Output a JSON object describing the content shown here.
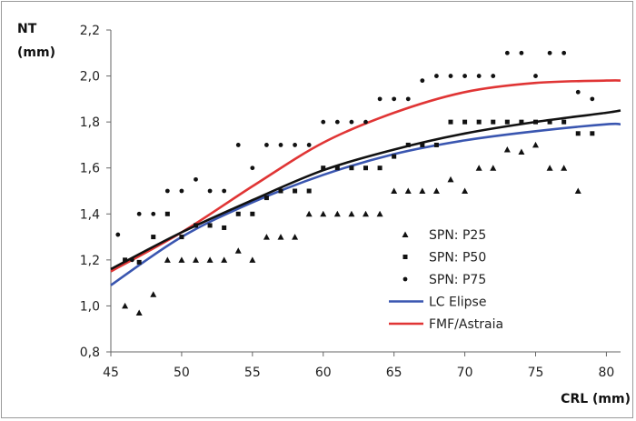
{
  "chart_data": {
    "type": "scatter",
    "title": "",
    "ylabel_line1": "NT",
    "ylabel_line2": "(mm)",
    "xlabel": "CRL (mm)",
    "xlim": [
      45,
      81
    ],
    "ylim": [
      0.8,
      2.2
    ],
    "x_ticks": [
      45,
      50,
      55,
      60,
      65,
      70,
      75,
      80
    ],
    "y_ticks": [
      0.8,
      1.0,
      1.2,
      1.4,
      1.6,
      1.8,
      2.0,
      2.2
    ],
    "x_tick_labels": [
      "45",
      "50",
      "55",
      "60",
      "65",
      "70",
      "75",
      "80"
    ],
    "y_tick_labels": [
      "0,8",
      "1,0",
      "1,2",
      "1,4",
      "1,6",
      "1,8",
      "2,0",
      "2,2"
    ],
    "grid": false,
    "legend_position": "bottom-right",
    "colors": {
      "points": "#111111",
      "lc_elipse": "#3a56b0",
      "fmf_astraia": "#e03535",
      "black_curve": "#111111",
      "axis": "#666666"
    },
    "series": [
      {
        "name": "SPN: P25",
        "marker": "triangle",
        "points": [
          [
            46,
            1.0
          ],
          [
            47,
            0.97
          ],
          [
            48,
            1.05
          ],
          [
            49,
            1.2
          ],
          [
            50,
            1.2
          ],
          [
            51,
            1.2
          ],
          [
            52,
            1.2
          ],
          [
            53,
            1.2
          ],
          [
            54,
            1.24
          ],
          [
            55,
            1.2
          ],
          [
            56,
            1.3
          ],
          [
            57,
            1.3
          ],
          [
            58,
            1.3
          ],
          [
            59,
            1.4
          ],
          [
            60,
            1.4
          ],
          [
            61,
            1.4
          ],
          [
            62,
            1.4
          ],
          [
            63,
            1.4
          ],
          [
            64,
            1.4
          ],
          [
            65,
            1.5
          ],
          [
            66,
            1.5
          ],
          [
            67,
            1.5
          ],
          [
            68,
            1.5
          ],
          [
            69,
            1.55
          ],
          [
            70,
            1.5
          ],
          [
            71,
            1.6
          ],
          [
            72,
            1.6
          ],
          [
            73,
            1.68
          ],
          [
            74,
            1.67
          ],
          [
            75,
            1.7
          ],
          [
            76,
            1.6
          ],
          [
            77,
            1.6
          ],
          [
            78,
            1.5
          ]
        ]
      },
      {
        "name": "SPN: P50",
        "marker": "square",
        "points": [
          [
            46,
            1.2
          ],
          [
            47,
            1.19
          ],
          [
            48,
            1.3
          ],
          [
            49,
            1.4
          ],
          [
            50,
            1.3
          ],
          [
            51,
            1.35
          ],
          [
            52,
            1.35
          ],
          [
            53,
            1.34
          ],
          [
            54,
            1.4
          ],
          [
            55,
            1.4
          ],
          [
            56,
            1.47
          ],
          [
            57,
            1.5
          ],
          [
            58,
            1.5
          ],
          [
            59,
            1.5
          ],
          [
            60,
            1.6
          ],
          [
            61,
            1.6
          ],
          [
            62,
            1.6
          ],
          [
            63,
            1.6
          ],
          [
            64,
            1.6
          ],
          [
            65,
            1.65
          ],
          [
            66,
            1.7
          ],
          [
            67,
            1.7
          ],
          [
            68,
            1.7
          ],
          [
            69,
            1.8
          ],
          [
            70,
            1.8
          ],
          [
            71,
            1.8
          ],
          [
            72,
            1.8
          ],
          [
            73,
            1.8
          ],
          [
            74,
            1.8
          ],
          [
            75,
            1.8
          ],
          [
            76,
            1.8
          ],
          [
            77,
            1.8
          ],
          [
            78,
            1.75
          ],
          [
            79,
            1.75
          ]
        ]
      },
      {
        "name": "SPN: P75",
        "marker": "dot",
        "points": [
          [
            45.5,
            1.31
          ],
          [
            46.5,
            1.2
          ],
          [
            47,
            1.4
          ],
          [
            48,
            1.4
          ],
          [
            49,
            1.5
          ],
          [
            50,
            1.5
          ],
          [
            51,
            1.55
          ],
          [
            52,
            1.5
          ],
          [
            53,
            1.5
          ],
          [
            54,
            1.7
          ],
          [
            55,
            1.6
          ],
          [
            56,
            1.7
          ],
          [
            57,
            1.7
          ],
          [
            58,
            1.7
          ],
          [
            59,
            1.7
          ],
          [
            60,
            1.8
          ],
          [
            61,
            1.8
          ],
          [
            62,
            1.8
          ],
          [
            63,
            1.8
          ],
          [
            64,
            1.9
          ],
          [
            65,
            1.9
          ],
          [
            66,
            1.9
          ],
          [
            67,
            1.98
          ],
          [
            68,
            2.0
          ],
          [
            69,
            2.0
          ],
          [
            70,
            2.0
          ],
          [
            71,
            2.0
          ],
          [
            72,
            2.0
          ],
          [
            73,
            2.1
          ],
          [
            74,
            2.1
          ],
          [
            75,
            2.0
          ],
          [
            76,
            2.1
          ],
          [
            77,
            2.1
          ],
          [
            78,
            1.93
          ],
          [
            79,
            1.9
          ]
        ]
      },
      {
        "name": "LC Elipse",
        "type": "line",
        "x": [
          45,
          50,
          55,
          60,
          65,
          70,
          75,
          80,
          81
        ],
        "values": [
          1.09,
          1.3,
          1.45,
          1.57,
          1.66,
          1.72,
          1.76,
          1.79,
          1.79
        ]
      },
      {
        "name": "FMF/Astraia",
        "type": "line",
        "x": [
          45,
          50,
          55,
          60,
          65,
          70,
          75,
          80,
          81
        ],
        "values": [
          1.15,
          1.32,
          1.52,
          1.71,
          1.84,
          1.93,
          1.97,
          1.98,
          1.98
        ]
      },
      {
        "name": "",
        "type": "line",
        "x": [
          45,
          50,
          55,
          60,
          65,
          70,
          75,
          80,
          81
        ],
        "values": [
          1.16,
          1.32,
          1.46,
          1.59,
          1.68,
          1.75,
          1.8,
          1.84,
          1.85
        ]
      }
    ]
  }
}
